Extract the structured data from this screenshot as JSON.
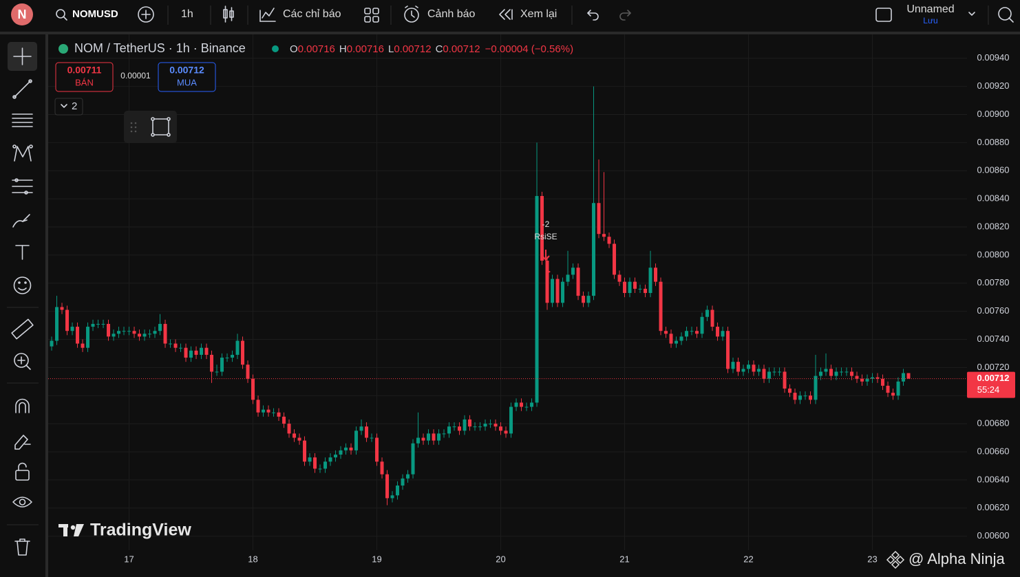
{
  "ui": {
    "logo": "N",
    "symbol": "NOMUSD",
    "interval": "1h",
    "indicators": "Các chỉ báo",
    "alerts": "Cảnh báo",
    "replay": "Xem lại",
    "layout_name": "Unnamed",
    "save": "Lưu",
    "legend_title": "NOM / TetherUS · 1h · Binance",
    "o_label": "O",
    "h_label": "H",
    "l_label": "L",
    "c_label": "C",
    "change": "−0.00004 (−0.56%)",
    "sell_price": "0.00711",
    "sell": "BÁN",
    "spread": "0.00001",
    "buy_price": "0.00712",
    "buy": "MUA",
    "collapse_count": "2",
    "countdown": "55:24",
    "brand": "TradingView",
    "watermark": "@ Alpha Ninja"
  },
  "chart_data": {
    "type": "candlestick",
    "up_color": "#089981",
    "down_color": "#f23645",
    "grid": true,
    "annotations": [
      "-2",
      "RsiSE"
    ],
    "xlim": [
      -0.67,
      177.33
    ],
    "xticks": [
      {
        "value": 15,
        "label": "17"
      },
      {
        "value": 39,
        "label": "18"
      },
      {
        "value": 63,
        "label": "19"
      },
      {
        "value": 87,
        "label": "20"
      },
      {
        "value": 111,
        "label": "21"
      },
      {
        "value": 135,
        "label": "22"
      },
      {
        "value": 159,
        "label": "23"
      }
    ],
    "ylim": [
      0.0059,
      0.00957
    ],
    "yticks": [
      {
        "value": 0.006,
        "label": "0.00600"
      },
      {
        "value": 0.0062,
        "label": "0.00620"
      },
      {
        "value": 0.0064,
        "label": "0.00640"
      },
      {
        "value": 0.0066,
        "label": "0.00660"
      },
      {
        "value": 0.0068,
        "label": "0.00680"
      },
      {
        "value": 0.007,
        "label": "0.00700"
      },
      {
        "value": 0.0072,
        "label": "0.00720"
      },
      {
        "value": 0.0074,
        "label": "0.00740"
      },
      {
        "value": 0.0076,
        "label": "0.00760"
      },
      {
        "value": 0.0078,
        "label": "0.00780"
      },
      {
        "value": 0.008,
        "label": "0.00800"
      },
      {
        "value": 0.0082,
        "label": "0.00820"
      },
      {
        "value": 0.0084,
        "label": "0.00840"
      },
      {
        "value": 0.0086,
        "label": "0.00860"
      },
      {
        "value": 0.0088,
        "label": "0.00880"
      },
      {
        "value": 0.009,
        "label": "0.00900"
      },
      {
        "value": 0.0092,
        "label": "0.00920"
      },
      {
        "value": 0.0094,
        "label": "0.00940"
      }
    ],
    "open": [
      0.00735,
      0.00739,
      0.00763,
      0.00761,
      0.00746,
      0.00749,
      0.00737,
      0.00734,
      0.00749,
      0.00751,
      0.00751,
      0.00751,
      0.00742,
      0.00744,
      0.00746,
      0.00746,
      0.00746,
      0.00744,
      0.00742,
      0.00744,
      0.00744,
      0.00746,
      0.00751,
      0.00737,
      0.00737,
      0.00734,
      0.00734,
      0.00727,
      0.00732,
      0.00729,
      0.00734,
      0.00729,
      0.00717,
      0.00717,
      0.00727,
      0.00727,
      0.00729,
      0.00739,
      0.00722,
      0.00712,
      0.00697,
      0.00688,
      0.0069,
      0.00688,
      0.00688,
      0.00685,
      0.0068,
      0.00673,
      0.0067,
      0.00668,
      0.00653,
      0.00656,
      0.00648,
      0.00648,
      0.00653,
      0.00656,
      0.00658,
      0.00661,
      0.00663,
      0.00661,
      0.00675,
      0.00678,
      0.0067,
      0.0067,
      0.00653,
      0.00644,
      0.00627,
      0.00629,
      0.00636,
      0.00641,
      0.00644,
      0.00666,
      0.0067,
      0.00668,
      0.00673,
      0.00668,
      0.00673,
      0.00673,
      0.00678,
      0.00678,
      0.00675,
      0.00683,
      0.00678,
      0.00678,
      0.00678,
      0.0068,
      0.0068,
      0.00678,
      0.00675,
      0.00673,
      0.00692,
      0.00695,
      0.00692,
      0.00692,
      0.00695,
      0.00842,
      0.00796,
      0.00766,
      0.00783,
      0.00766,
      0.00781,
      0.00786,
      0.00791,
      0.00771,
      0.00766,
      0.00771,
      0.00837,
      0.00815,
      0.00813,
      0.00808,
      0.00786,
      0.00781,
      0.00773,
      0.00781,
      0.00776,
      0.00776,
      0.00773,
      0.00791,
      0.00781,
      0.00746,
      0.00744,
      0.00737,
      0.00739,
      0.00742,
      0.00746,
      0.00746,
      0.00744,
      0.00756,
      0.00761,
      0.00749,
      0.00742,
      0.00746,
      0.00719,
      0.00724,
      0.00717,
      0.00719,
      0.00722,
      0.00717,
      0.00719,
      0.00712,
      0.00717,
      0.00717,
      0.00717,
      0.00705,
      0.00702,
      0.00697,
      0.007,
      0.007,
      0.00697,
      0.00714,
      0.00717,
      0.00719,
      0.00714,
      0.00717,
      0.00717,
      0.00717,
      0.00714,
      0.00712,
      0.0071,
      0.00712,
      0.00713,
      0.00712,
      0.00707,
      0.00702,
      0.007,
      0.0071,
      0.00716
    ],
    "high": [
      0.00742,
      0.00771,
      0.00766,
      0.00764,
      0.00752,
      0.00752,
      0.0074,
      0.00752,
      0.00754,
      0.00754,
      0.00754,
      0.00754,
      0.00747,
      0.00749,
      0.00749,
      0.00749,
      0.00749,
      0.00747,
      0.00747,
      0.00747,
      0.00749,
      0.00758,
      0.00754,
      0.0074,
      0.0074,
      0.00737,
      0.00737,
      0.00735,
      0.00735,
      0.00737,
      0.00737,
      0.00732,
      0.00722,
      0.0073,
      0.0073,
      0.00732,
      0.00744,
      0.00742,
      0.00725,
      0.00715,
      0.007,
      0.00693,
      0.00693,
      0.00691,
      0.00691,
      0.00688,
      0.00683,
      0.00676,
      0.00673,
      0.00671,
      0.00659,
      0.00659,
      0.00651,
      0.00656,
      0.00659,
      0.00661,
      0.00664,
      0.00666,
      0.00666,
      0.00678,
      0.00683,
      0.00681,
      0.00673,
      0.00673,
      0.00656,
      0.00647,
      0.00632,
      0.00639,
      0.00644,
      0.00647,
      0.00669,
      0.00688,
      0.00673,
      0.00676,
      0.00676,
      0.00676,
      0.00676,
      0.00681,
      0.00681,
      0.00681,
      0.00686,
      0.00686,
      0.00681,
      0.00681,
      0.00683,
      0.00683,
      0.00683,
      0.00681,
      0.00678,
      0.00695,
      0.00698,
      0.00698,
      0.00695,
      0.00698,
      0.0088,
      0.00845,
      0.00799,
      0.00786,
      0.00786,
      0.00784,
      0.00803,
      0.00794,
      0.00794,
      0.00774,
      0.00774,
      0.0092,
      0.00868,
      0.00859,
      0.00816,
      0.00811,
      0.00789,
      0.00784,
      0.00784,
      0.00784,
      0.00779,
      0.00779,
      0.00803,
      0.00794,
      0.00784,
      0.00749,
      0.00747,
      0.00742,
      0.00745,
      0.00749,
      0.00749,
      0.00749,
      0.00759,
      0.00764,
      0.00764,
      0.00752,
      0.00749,
      0.00749,
      0.00727,
      0.00727,
      0.00722,
      0.00725,
      0.00725,
      0.00722,
      0.00722,
      0.0072,
      0.0072,
      0.0072,
      0.0072,
      0.00708,
      0.00705,
      0.00703,
      0.00703,
      0.00703,
      0.00729,
      0.0072,
      0.0073,
      0.00722,
      0.0072,
      0.0072,
      0.0072,
      0.0072,
      0.00717,
      0.00715,
      0.00715,
      0.00716,
      0.00716,
      0.00715,
      0.0071,
      0.00705,
      0.00713,
      0.00719,
      0.00716
    ],
    "low": [
      0.00732,
      0.00736,
      0.00758,
      0.00743,
      0.00743,
      0.00734,
      0.00731,
      0.00731,
      0.00746,
      0.00748,
      0.00748,
      0.00739,
      0.00739,
      0.00741,
      0.00743,
      0.00743,
      0.00741,
      0.00739,
      0.00739,
      0.00741,
      0.00741,
      0.00743,
      0.00734,
      0.00734,
      0.00731,
      0.00731,
      0.00724,
      0.00724,
      0.00726,
      0.00726,
      0.00726,
      0.00709,
      0.00714,
      0.00714,
      0.00724,
      0.00724,
      0.00726,
      0.00719,
      0.00709,
      0.00694,
      0.00685,
      0.00685,
      0.00685,
      0.00685,
      0.00682,
      0.00677,
      0.0067,
      0.00667,
      0.00665,
      0.0065,
      0.0065,
      0.00645,
      0.00645,
      0.00645,
      0.0065,
      0.00653,
      0.00655,
      0.00658,
      0.00658,
      0.00658,
      0.00672,
      0.00667,
      0.00667,
      0.0065,
      0.00641,
      0.00622,
      0.00624,
      0.00626,
      0.00633,
      0.00638,
      0.00641,
      0.00663,
      0.00665,
      0.00665,
      0.00665,
      0.00665,
      0.0067,
      0.0067,
      0.00675,
      0.00672,
      0.00672,
      0.00675,
      0.00675,
      0.00675,
      0.00675,
      0.00677,
      0.00675,
      0.00672,
      0.0067,
      0.0067,
      0.00689,
      0.00689,
      0.00689,
      0.00689,
      0.00692,
      0.00793,
      0.00761,
      0.00763,
      0.00763,
      0.00763,
      0.00778,
      0.00783,
      0.00768,
      0.00763,
      0.00763,
      0.00768,
      0.00812,
      0.0081,
      0.00805,
      0.00783,
      0.00778,
      0.0077,
      0.0077,
      0.00773,
      0.00773,
      0.0077,
      0.0077,
      0.00778,
      0.00743,
      0.00741,
      0.00734,
      0.00734,
      0.00736,
      0.00739,
      0.00743,
      0.00741,
      0.00741,
      0.00753,
      0.00746,
      0.00739,
      0.00739,
      0.00716,
      0.00716,
      0.00714,
      0.00714,
      0.00716,
      0.00714,
      0.00714,
      0.00709,
      0.00709,
      0.00714,
      0.00714,
      0.00702,
      0.00699,
      0.00694,
      0.00694,
      0.00697,
      0.00694,
      0.00694,
      0.00711,
      0.00714,
      0.00711,
      0.00711,
      0.00714,
      0.00714,
      0.00711,
      0.00709,
      0.00707,
      0.00707,
      0.00709,
      0.00709,
      0.00704,
      0.00699,
      0.00697,
      0.00697,
      0.00707,
      0.00712
    ],
    "close": [
      0.00739,
      0.00763,
      0.00761,
      0.00746,
      0.00749,
      0.00737,
      0.00734,
      0.00749,
      0.00751,
      0.00751,
      0.00751,
      0.00742,
      0.00744,
      0.00746,
      0.00746,
      0.00746,
      0.00744,
      0.00742,
      0.00744,
      0.00744,
      0.00746,
      0.00751,
      0.00737,
      0.00737,
      0.00734,
      0.00734,
      0.00727,
      0.00732,
      0.00729,
      0.00734,
      0.00729,
      0.00717,
      0.00717,
      0.00727,
      0.00727,
      0.00729,
      0.00739,
      0.00722,
      0.00712,
      0.00697,
      0.00688,
      0.0069,
      0.00688,
      0.00688,
      0.00685,
      0.0068,
      0.00673,
      0.0067,
      0.00668,
      0.00653,
      0.00656,
      0.00648,
      0.00648,
      0.00653,
      0.00656,
      0.00658,
      0.00661,
      0.00663,
      0.00661,
      0.00675,
      0.00678,
      0.0067,
      0.0067,
      0.00653,
      0.00644,
      0.00627,
      0.00629,
      0.00636,
      0.00641,
      0.00644,
      0.00666,
      0.0067,
      0.00668,
      0.00673,
      0.00668,
      0.00673,
      0.00673,
      0.00678,
      0.00678,
      0.00675,
      0.00683,
      0.00678,
      0.00678,
      0.00678,
      0.0068,
      0.0068,
      0.00678,
      0.00675,
      0.00673,
      0.00692,
      0.00695,
      0.00692,
      0.00692,
      0.00695,
      0.00842,
      0.00796,
      0.00766,
      0.00783,
      0.00766,
      0.00781,
      0.00786,
      0.00791,
      0.00771,
      0.00766,
      0.00771,
      0.00837,
      0.00815,
      0.00813,
      0.00808,
      0.00786,
      0.00781,
      0.00773,
      0.00781,
      0.00776,
      0.00776,
      0.00773,
      0.00791,
      0.00781,
      0.00746,
      0.00744,
      0.00737,
      0.00739,
      0.00742,
      0.00746,
      0.00746,
      0.00744,
      0.00756,
      0.00761,
      0.00749,
      0.00742,
      0.00746,
      0.00719,
      0.00724,
      0.00717,
      0.00719,
      0.00722,
      0.00717,
      0.00719,
      0.00712,
      0.00717,
      0.00717,
      0.00717,
      0.00705,
      0.00702,
      0.00697,
      0.007,
      0.007,
      0.00697,
      0.00714,
      0.00717,
      0.00719,
      0.00714,
      0.00717,
      0.00717,
      0.00717,
      0.00714,
      0.00712,
      0.0071,
      0.00712,
      0.00713,
      0.00712,
      0.00707,
      0.00702,
      0.007,
      0.0071,
      0.00716,
      0.00712
    ]
  }
}
